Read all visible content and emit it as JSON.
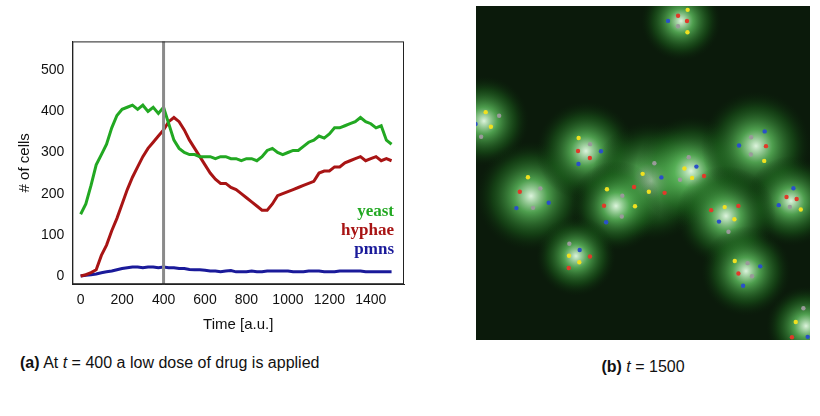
{
  "chart_data": {
    "type": "line",
    "x_label": "Time [a.u.]",
    "y_label": "# of cells",
    "caption": "(a) At t = 400 a low dose of drug is applied",
    "xlim": [
      -40,
      1560
    ],
    "xticks": [
      0,
      200,
      400,
      600,
      800,
      1000,
      1200,
      1400
    ],
    "ylim": [
      -20,
      570
    ],
    "yticks": [
      0,
      100,
      200,
      300,
      400,
      500
    ],
    "grid": false,
    "legend": "lower right",
    "vline": 400,
    "x": [
      0,
      25,
      50,
      75,
      100,
      125,
      150,
      175,
      200,
      225,
      250,
      275,
      300,
      325,
      350,
      375,
      400,
      425,
      450,
      475,
      500,
      525,
      550,
      575,
      600,
      625,
      650,
      675,
      700,
      725,
      750,
      775,
      800,
      825,
      850,
      875,
      900,
      925,
      950,
      975,
      1000,
      1025,
      1050,
      1075,
      1100,
      1125,
      1150,
      1175,
      1200,
      1225,
      1250,
      1275,
      1300,
      1325,
      1350,
      1375,
      1400,
      1425,
      1450,
      1475,
      1500
    ],
    "series": [
      {
        "name": "yeast",
        "color": "#22a822",
        "values": [
          150,
          175,
          220,
          270,
          295,
          320,
          360,
          390,
          405,
          410,
          415,
          405,
          415,
          400,
          410,
          395,
          410,
          370,
          330,
          310,
          300,
          295,
          295,
          290,
          290,
          290,
          285,
          290,
          290,
          285,
          285,
          280,
          285,
          285,
          280,
          290,
          305,
          310,
          300,
          295,
          300,
          305,
          305,
          315,
          325,
          330,
          340,
          335,
          345,
          360,
          360,
          365,
          370,
          375,
          385,
          375,
          370,
          360,
          365,
          330,
          320
        ]
      },
      {
        "name": "hyphae",
        "color": "#a81414",
        "values": [
          0,
          3,
          8,
          15,
          50,
          75,
          110,
          140,
          175,
          210,
          240,
          265,
          290,
          310,
          325,
          340,
          355,
          375,
          385,
          375,
          355,
          330,
          310,
          290,
          270,
          250,
          235,
          225,
          225,
          215,
          210,
          200,
          190,
          180,
          170,
          160,
          160,
          175,
          195,
          200,
          205,
          210,
          215,
          220,
          225,
          230,
          250,
          255,
          255,
          265,
          265,
          275,
          280,
          285,
          290,
          280,
          285,
          290,
          280,
          285,
          280
        ]
      },
      {
        "name": "pmns",
        "color": "#1a1a9a",
        "values": [
          0,
          2,
          3,
          5,
          8,
          10,
          12,
          15,
          18,
          20,
          22,
          22,
          20,
          22,
          22,
          20,
          22,
          20,
          20,
          18,
          18,
          16,
          15,
          15,
          14,
          12,
          12,
          10,
          12,
          13,
          10,
          10,
          10,
          12,
          10,
          10,
          12,
          12,
          12,
          12,
          12,
          10,
          10,
          10,
          12,
          12,
          12,
          10,
          10,
          10,
          12,
          12,
          12,
          12,
          12,
          10,
          10,
          10,
          10,
          10,
          10
        ]
      }
    ]
  },
  "image": {
    "caption": "(b) t = 1500"
  }
}
